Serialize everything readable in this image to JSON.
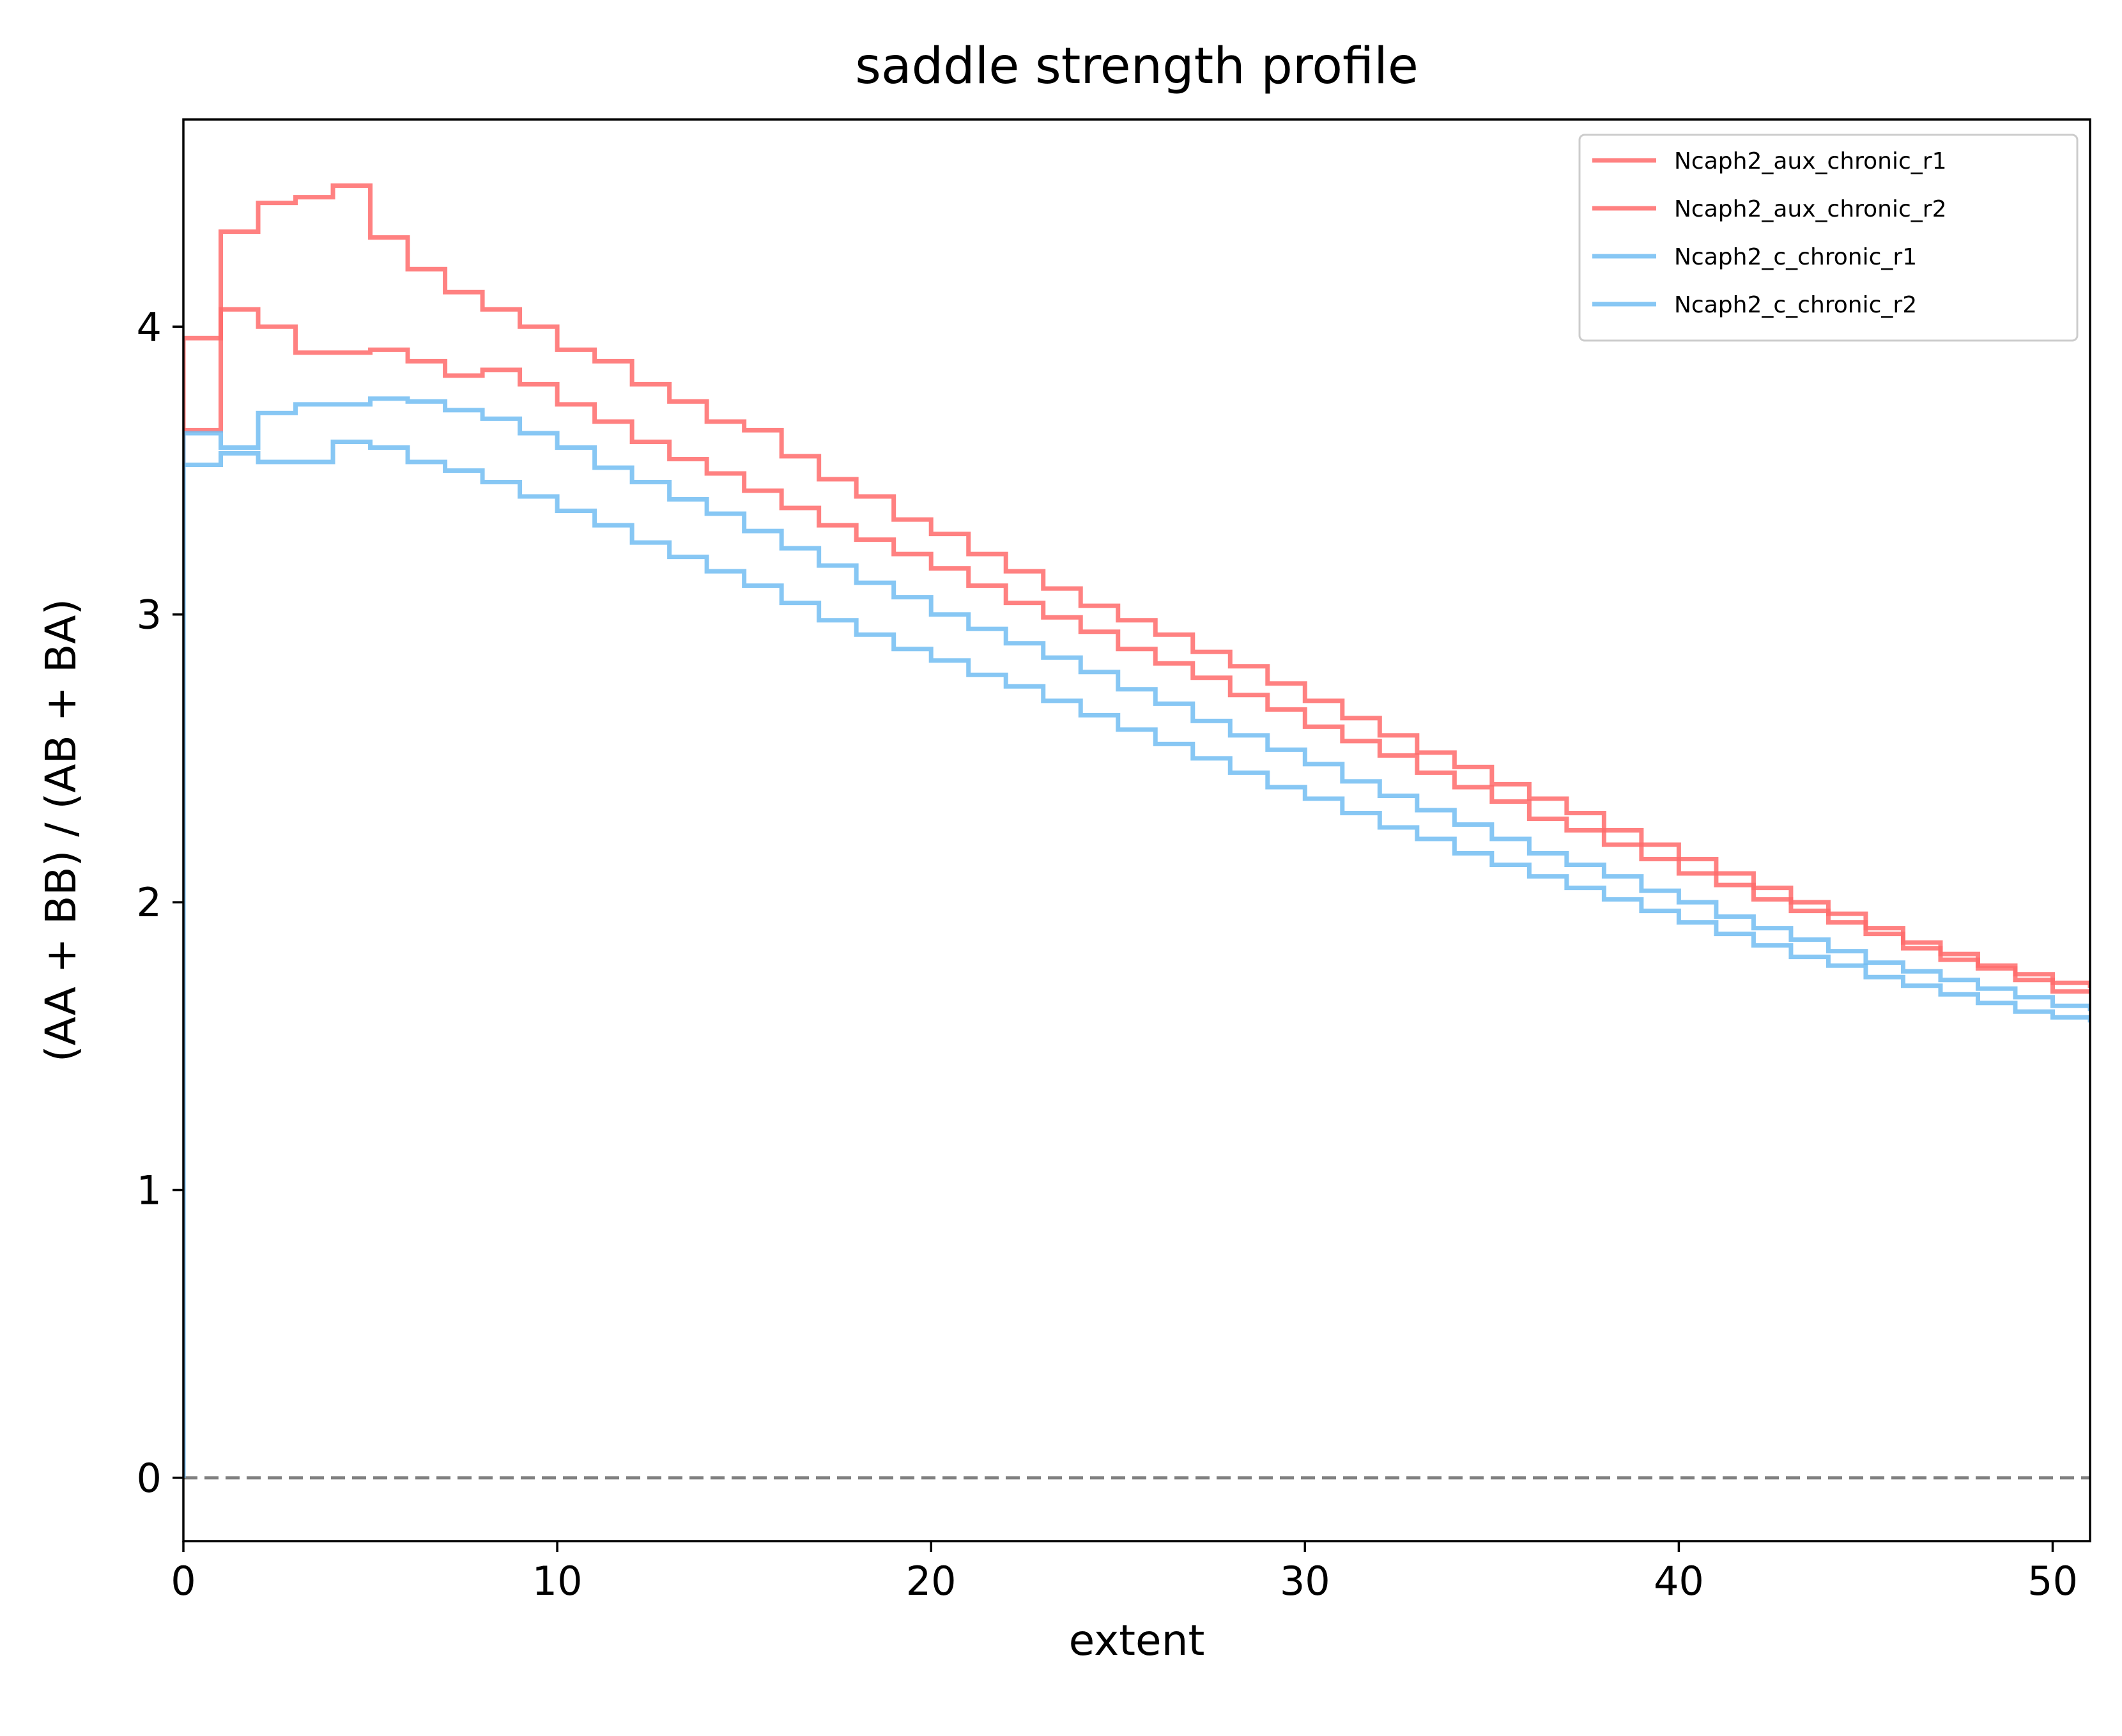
{
  "chart_data": {
    "type": "line",
    "title": "saddle strength profile",
    "xlabel": "extent",
    "ylabel": "(AA + BB) / (AB + BA)",
    "xlim": [
      0,
      51
    ],
    "ylim": [
      -0.22,
      4.72
    ],
    "xticks": [
      0,
      10,
      20,
      30,
      40,
      50
    ],
    "yticks": [
      0,
      1,
      2,
      3,
      4
    ],
    "grid": false,
    "legend_position": "top-right",
    "reference_line": {
      "y": 0,
      "style": "dashed",
      "color": "#808080"
    },
    "step_where": "post",
    "series": [
      {
        "name": "Ncaph2_aux_chronic_r1",
        "color": "#ff6b6b",
        "values": [
          3.96,
          4.33,
          4.43,
          4.45,
          4.49,
          4.31,
          4.2,
          4.12,
          4.06,
          4.0,
          3.92,
          3.88,
          3.8,
          3.74,
          3.67,
          3.64,
          3.55,
          3.47,
          3.41,
          3.33,
          3.28,
          3.21,
          3.15,
          3.09,
          3.03,
          2.98,
          2.93,
          2.87,
          2.82,
          2.76,
          2.7,
          2.64,
          2.58,
          2.52,
          2.47,
          2.41,
          2.36,
          2.31,
          2.25,
          2.2,
          2.15,
          2.1,
          2.05,
          2.0,
          1.96,
          1.91,
          1.86,
          1.82,
          1.78,
          1.75,
          1.72,
          1.71
        ]
      },
      {
        "name": "Ncaph2_aux_chronic_r2",
        "color": "#ff6b6b",
        "values": [
          3.64,
          4.06,
          4.0,
          3.91,
          3.91,
          3.92,
          3.88,
          3.83,
          3.85,
          3.8,
          3.73,
          3.67,
          3.6,
          3.54,
          3.49,
          3.43,
          3.37,
          3.31,
          3.26,
          3.21,
          3.16,
          3.1,
          3.04,
          2.99,
          2.94,
          2.88,
          2.83,
          2.78,
          2.72,
          2.67,
          2.61,
          2.56,
          2.51,
          2.45,
          2.4,
          2.35,
          2.29,
          2.25,
          2.2,
          2.15,
          2.1,
          2.06,
          2.01,
          1.97,
          1.93,
          1.89,
          1.84,
          1.8,
          1.77,
          1.73,
          1.69,
          1.69
        ]
      },
      {
        "name": "Ncaph2_c_chronic_r1",
        "color": "#72bdf2",
        "values": [
          3.63,
          3.58,
          3.7,
          3.73,
          3.73,
          3.75,
          3.74,
          3.71,
          3.68,
          3.63,
          3.58,
          3.51,
          3.46,
          3.4,
          3.35,
          3.29,
          3.23,
          3.17,
          3.11,
          3.06,
          3.0,
          2.95,
          2.9,
          2.85,
          2.8,
          2.74,
          2.69,
          2.63,
          2.58,
          2.53,
          2.48,
          2.42,
          2.37,
          2.32,
          2.27,
          2.22,
          2.17,
          2.13,
          2.09,
          2.04,
          2.0,
          1.95,
          1.91,
          1.87,
          1.83,
          1.79,
          1.76,
          1.73,
          1.7,
          1.67,
          1.64,
          1.63
        ]
      },
      {
        "name": "Ncaph2_c_chronic_r2",
        "color": "#72bdf2",
        "values": [
          3.52,
          3.56,
          3.53,
          3.53,
          3.6,
          3.58,
          3.53,
          3.5,
          3.46,
          3.41,
          3.36,
          3.31,
          3.25,
          3.2,
          3.15,
          3.1,
          3.04,
          2.98,
          2.93,
          2.88,
          2.84,
          2.79,
          2.75,
          2.7,
          2.65,
          2.6,
          2.55,
          2.5,
          2.45,
          2.4,
          2.36,
          2.31,
          2.26,
          2.22,
          2.17,
          2.13,
          2.09,
          2.05,
          2.01,
          1.97,
          1.93,
          1.89,
          1.85,
          1.81,
          1.78,
          1.74,
          1.71,
          1.68,
          1.65,
          1.62,
          1.6,
          1.59
        ]
      }
    ]
  }
}
